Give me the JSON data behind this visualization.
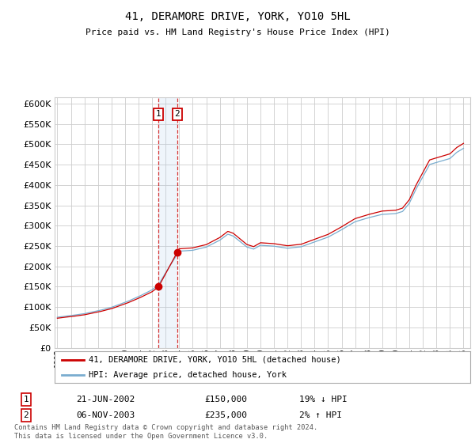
{
  "title": "41, DERAMORE DRIVE, YORK, YO10 5HL",
  "subtitle": "Price paid vs. HM Land Registry's House Price Index (HPI)",
  "yticks": [
    0,
    50000,
    100000,
    150000,
    200000,
    250000,
    300000,
    350000,
    400000,
    450000,
    500000,
    550000,
    600000
  ],
  "ylim": [
    0,
    615000
  ],
  "legend_line1": "41, DERAMORE DRIVE, YORK, YO10 5HL (detached house)",
  "legend_line2": "HPI: Average price, detached house, York",
  "transaction1_date": "21-JUN-2002",
  "transaction1_price": "£150,000",
  "transaction1_hpi": "19% ↓ HPI",
  "transaction2_date": "06-NOV-2003",
  "transaction2_price": "£235,000",
  "transaction2_hpi": "2% ↑ HPI",
  "line_color_red": "#cc0000",
  "line_color_blue": "#7aadcf",
  "bg_color": "#ffffff",
  "grid_color": "#cccccc",
  "footnote": "Contains HM Land Registry data © Crown copyright and database right 2024.\nThis data is licensed under the Open Government Licence v3.0.",
  "transaction1_x": 2002.47,
  "transaction2_x": 2003.85,
  "price_t1": 150000,
  "price_t2": 235000,
  "xmin": 1994.8,
  "xmax": 2025.5
}
